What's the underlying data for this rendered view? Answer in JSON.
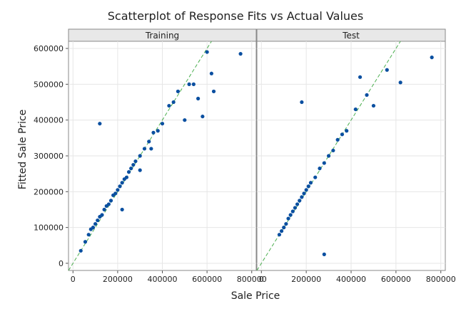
{
  "chart_data": {
    "type": "scatter",
    "title": "Scatterplot of Response Fits vs Actual Values",
    "xlabel": "Sale Price",
    "ylabel": "Fitted Sale Price",
    "xlim": [
      -20000,
      820000
    ],
    "ylim": [
      -20000,
      620000
    ],
    "xticks": [
      0,
      200000,
      400000,
      600000,
      800000
    ],
    "yticks": [
      0,
      100000,
      200000,
      300000,
      400000,
      500000,
      600000
    ],
    "xtick_labels": [
      "0",
      "200000",
      "400000",
      "600000",
      "800000"
    ],
    "ytick_labels": [
      "0",
      "100000",
      "200000",
      "300000",
      "400000",
      "500000",
      "600000"
    ],
    "grid": true,
    "reference_line": "y = x",
    "colors": {
      "points": "#0a4fa0",
      "reference": "#4caf50",
      "panel_header": "#e8e8e8",
      "grid": "#e6e6e6"
    },
    "panels": [
      {
        "name": "Training",
        "points": [
          [
            35000,
            35000
          ],
          [
            55000,
            60000
          ],
          [
            70000,
            80000
          ],
          [
            80000,
            95000
          ],
          [
            90000,
            100000
          ],
          [
            100000,
            110000
          ],
          [
            110000,
            120000
          ],
          [
            120000,
            130000
          ],
          [
            130000,
            135000
          ],
          [
            140000,
            150000
          ],
          [
            150000,
            160000
          ],
          [
            160000,
            165000
          ],
          [
            170000,
            175000
          ],
          [
            180000,
            190000
          ],
          [
            190000,
            195000
          ],
          [
            200000,
            205000
          ],
          [
            210000,
            215000
          ],
          [
            220000,
            225000
          ],
          [
            230000,
            235000
          ],
          [
            240000,
            240000
          ],
          [
            250000,
            255000
          ],
          [
            260000,
            265000
          ],
          [
            270000,
            275000
          ],
          [
            280000,
            285000
          ],
          [
            300000,
            300000
          ],
          [
            320000,
            320000
          ],
          [
            340000,
            340000
          ],
          [
            360000,
            365000
          ],
          [
            380000,
            370000
          ],
          [
            400000,
            390000
          ],
          [
            120000,
            390000
          ],
          [
            220000,
            150000
          ],
          [
            300000,
            260000
          ],
          [
            350000,
            320000
          ],
          [
            430000,
            440000
          ],
          [
            450000,
            450000
          ],
          [
            470000,
            480000
          ],
          [
            500000,
            400000
          ],
          [
            520000,
            500000
          ],
          [
            540000,
            500000
          ],
          [
            560000,
            460000
          ],
          [
            580000,
            410000
          ],
          [
            600000,
            590000
          ],
          [
            620000,
            530000
          ],
          [
            630000,
            480000
          ],
          [
            750000,
            585000
          ]
        ]
      },
      {
        "name": "Test",
        "points": [
          [
            80000,
            80000
          ],
          [
            90000,
            90000
          ],
          [
            100000,
            100000
          ],
          [
            110000,
            110000
          ],
          [
            120000,
            125000
          ],
          [
            130000,
            135000
          ],
          [
            140000,
            145000
          ],
          [
            150000,
            155000
          ],
          [
            160000,
            165000
          ],
          [
            170000,
            175000
          ],
          [
            180000,
            185000
          ],
          [
            190000,
            195000
          ],
          [
            200000,
            205000
          ],
          [
            210000,
            215000
          ],
          [
            220000,
            225000
          ],
          [
            240000,
            240000
          ],
          [
            260000,
            265000
          ],
          [
            280000,
            280000
          ],
          [
            300000,
            300000
          ],
          [
            320000,
            315000
          ],
          [
            340000,
            345000
          ],
          [
            360000,
            360000
          ],
          [
            380000,
            370000
          ],
          [
            180000,
            450000
          ],
          [
            280000,
            25000
          ],
          [
            420000,
            430000
          ],
          [
            440000,
            520000
          ],
          [
            470000,
            470000
          ],
          [
            500000,
            440000
          ],
          [
            560000,
            540000
          ],
          [
            620000,
            505000
          ],
          [
            760000,
            575000
          ]
        ]
      }
    ]
  }
}
